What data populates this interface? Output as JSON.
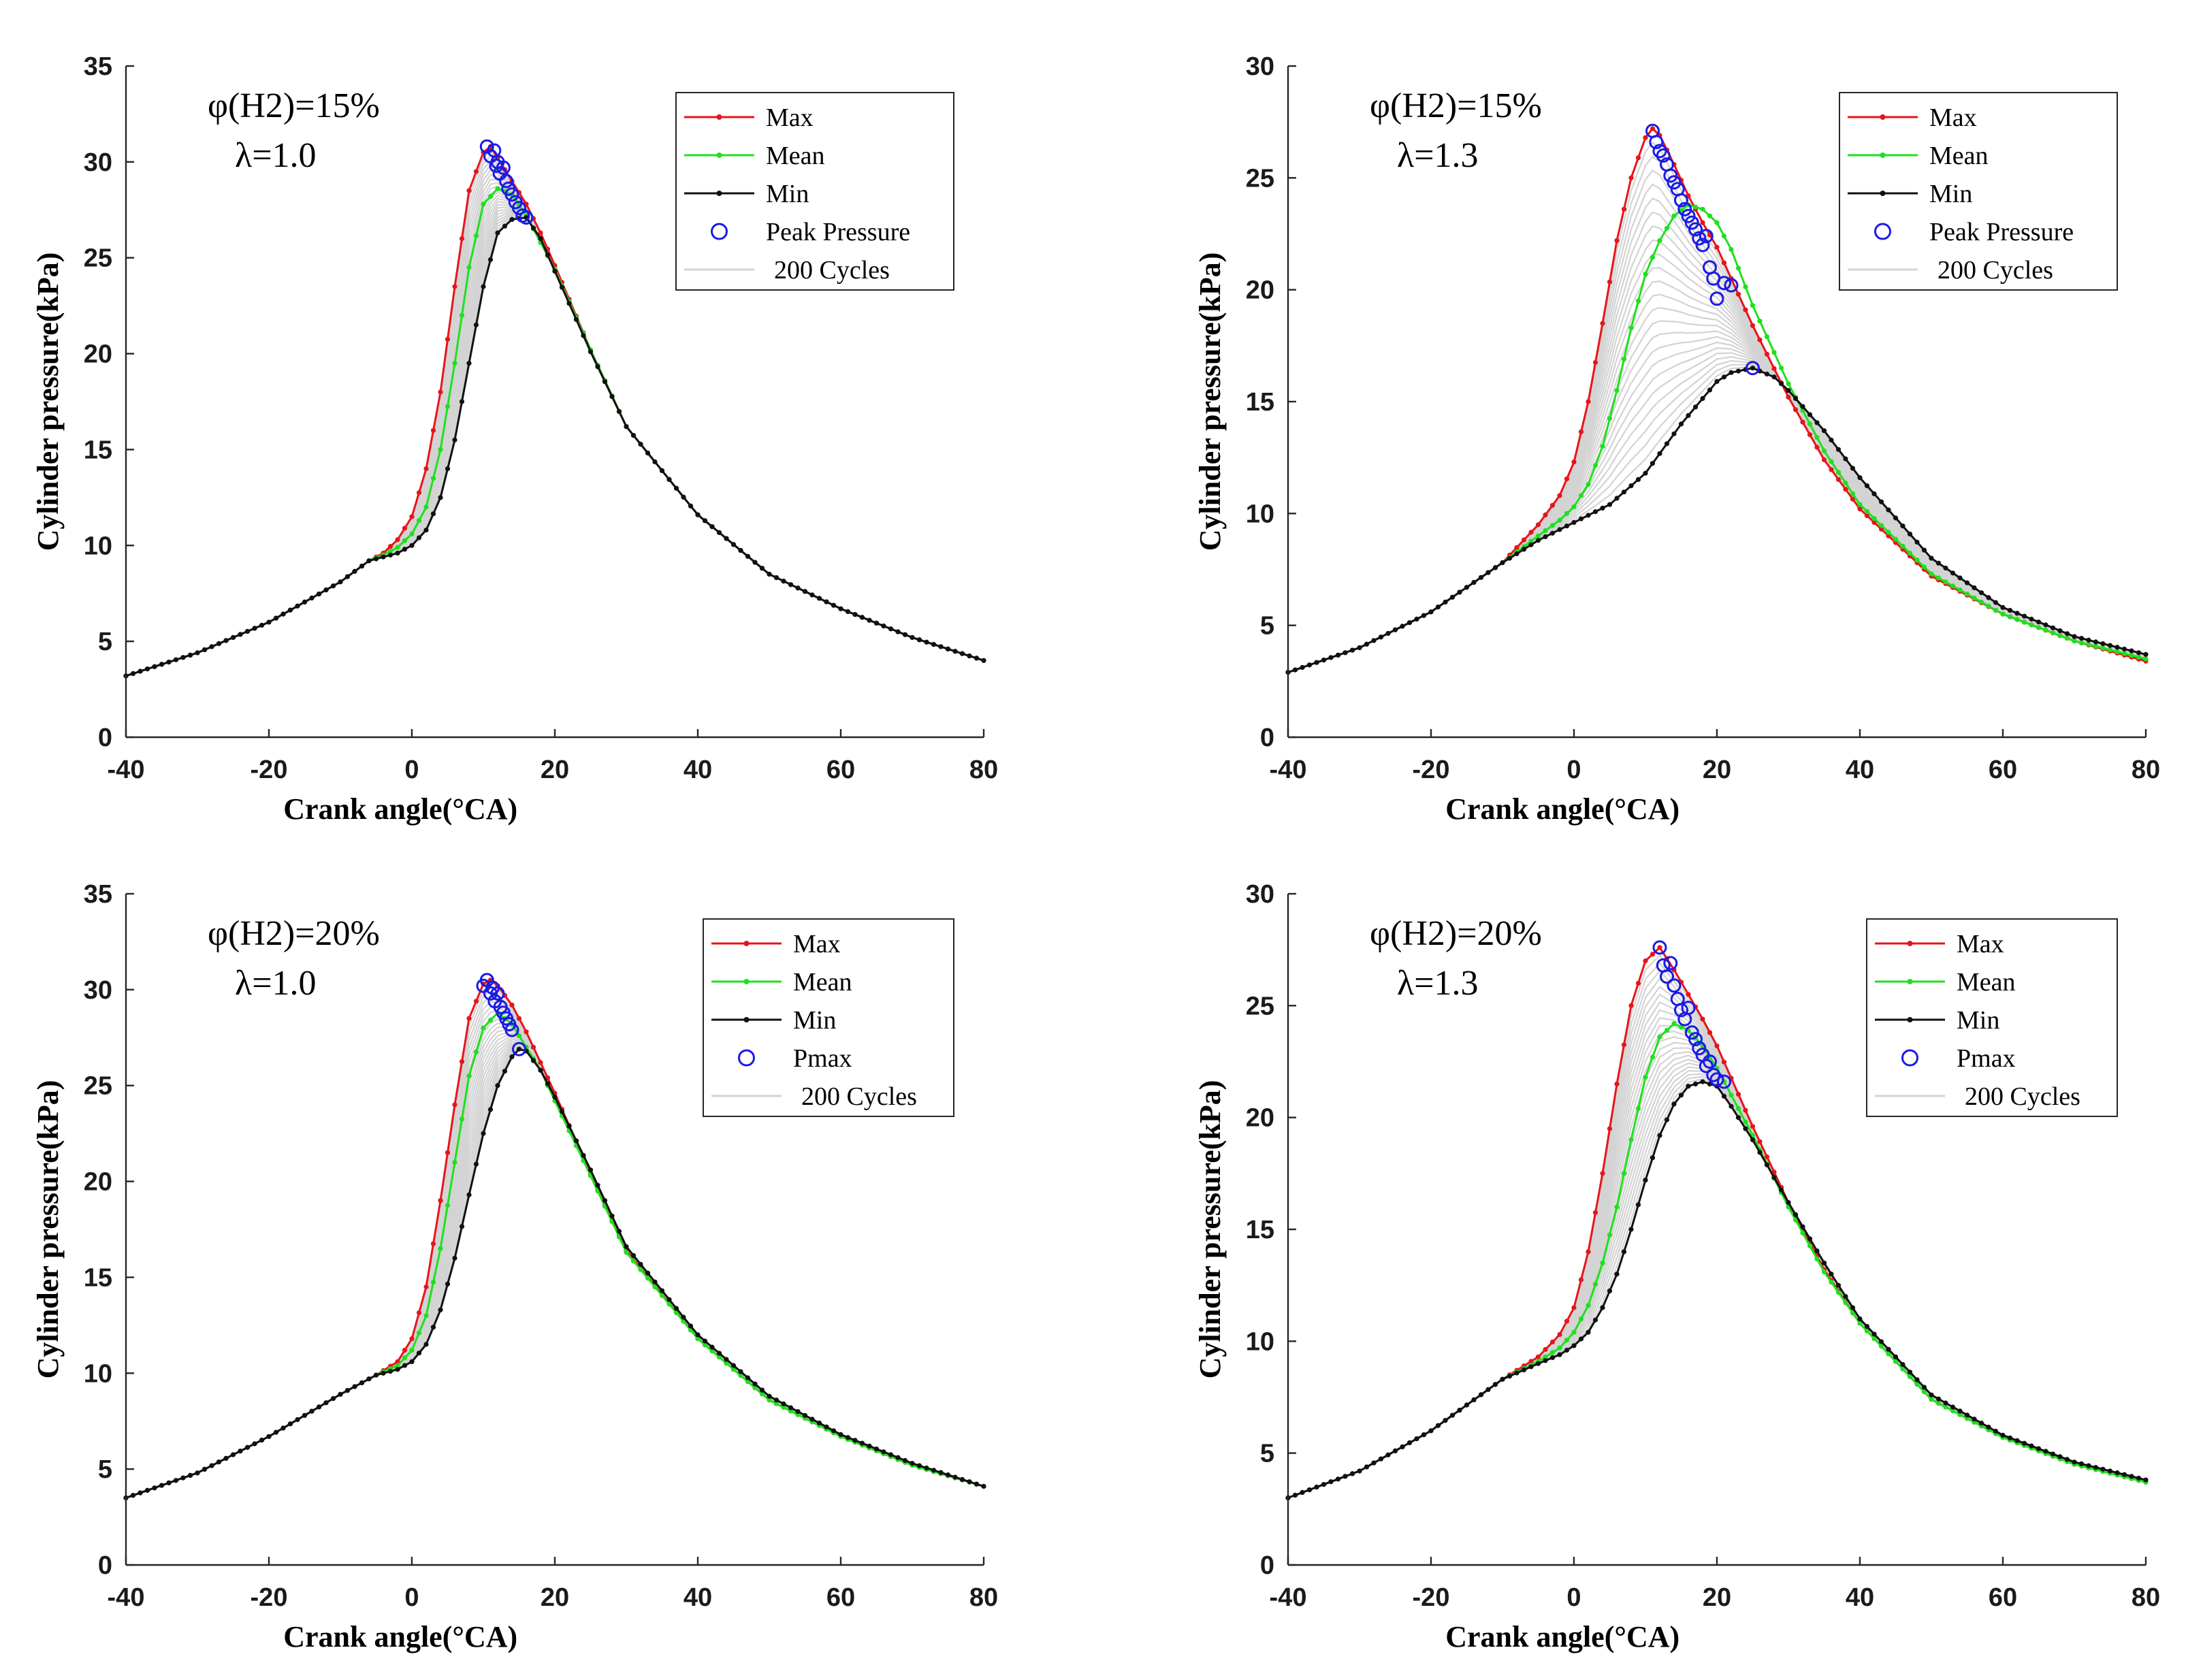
{
  "figure": {
    "xlabel": "Crank angle(°CA)",
    "ylabel": "Cylinder pressure(kPa)"
  },
  "colors": {
    "max": "#e8141a",
    "mean": "#1fe01f",
    "min": "#111111",
    "peak": "#1a1ae6",
    "cycles": "#d3d3d3"
  },
  "chart_data": [
    {
      "type": "line",
      "annotation": [
        "φ(H2)=15%",
        "λ=1.0"
      ],
      "xlabel": "Crank angle(°CA)",
      "ylabel": "Cylinder pressure(kPa)",
      "xlim": [
        -40,
        80
      ],
      "ylim": [
        0,
        35
      ],
      "xticks": [
        -40,
        -20,
        0,
        20,
        40,
        60,
        80
      ],
      "yticks": [
        0,
        5,
        10,
        15,
        20,
        25,
        30,
        35
      ],
      "legend": [
        "Max",
        "Mean",
        "Min",
        "Peak Pressure",
        "200 Cycles"
      ],
      "series": [
        {
          "name": "Max",
          "x": [
            -40,
            -30,
            -20,
            -10,
            -6,
            -4,
            -2,
            0,
            2,
            4,
            6,
            8,
            10,
            11,
            12,
            14,
            16,
            18,
            20,
            25,
            30,
            40,
            50,
            60,
            70,
            80
          ],
          "y": [
            3.2,
            4.4,
            6,
            8.1,
            9.2,
            9.6,
            10.3,
            11.5,
            14,
            18,
            23.5,
            28.5,
            30.5,
            30.8,
            30.2,
            29,
            27.8,
            26.3,
            24.6,
            20.2,
            16.2,
            11.6,
            8.5,
            6.7,
            5.2,
            4.0
          ]
        },
        {
          "name": "Mean",
          "x": [
            -40,
            -30,
            -20,
            -10,
            -6,
            -4,
            -2,
            0,
            2,
            4,
            6,
            8,
            10,
            12,
            14,
            16,
            18,
            20,
            25,
            30,
            40,
            50,
            60,
            70,
            80
          ],
          "y": [
            3.2,
            4.4,
            6,
            8.1,
            9.2,
            9.5,
            9.9,
            10.6,
            12,
            15,
            19.5,
            24.5,
            27.8,
            28.6,
            28.3,
            27.2,
            25.8,
            24.4,
            20.2,
            16.2,
            11.6,
            8.5,
            6.7,
            5.2,
            4.0
          ]
        },
        {
          "name": "Min",
          "x": [
            -40,
            -30,
            -20,
            -10,
            -6,
            -4,
            -2,
            0,
            2,
            4,
            6,
            8,
            10,
            12,
            14,
            16,
            18,
            20,
            25,
            30,
            40,
            50,
            60,
            70,
            80
          ],
          "y": [
            3.2,
            4.4,
            6,
            8.1,
            9.2,
            9.4,
            9.6,
            10,
            10.8,
            12.5,
            15.5,
            19.5,
            23.5,
            26.3,
            27,
            27.1,
            26,
            24.3,
            20.1,
            16.2,
            11.6,
            8.5,
            6.7,
            5.2,
            4.0
          ]
        }
      ],
      "peak_points": {
        "x": [
          10.5,
          11,
          11.5,
          11.8,
          12,
          12.3,
          12.8,
          13.2,
          13.5,
          14,
          14.5,
          15,
          15.5,
          16
        ],
        "y": [
          30.8,
          30.3,
          30.6,
          29.8,
          30,
          29.4,
          29.7,
          29,
          28.6,
          28.3,
          27.9,
          27.6,
          27.2,
          27.1
        ]
      }
    },
    {
      "type": "line",
      "annotation": [
        "φ(H2)=15%",
        "λ=1.3"
      ],
      "xlabel": "Crank angle(°CA)",
      "ylabel": "Cylinder pressure(kPa)",
      "xlim": [
        -40,
        80
      ],
      "ylim": [
        0,
        30
      ],
      "xticks": [
        -40,
        -20,
        0,
        20,
        40,
        60,
        80
      ],
      "yticks": [
        0,
        5,
        10,
        15,
        20,
        25,
        30
      ],
      "legend": [
        "Max",
        "Mean",
        "Min",
        "Peak Pressure",
        "200 Cycles"
      ],
      "series": [
        {
          "name": "Max",
          "x": [
            -40,
            -30,
            -20,
            -10,
            -5,
            -2,
            0,
            2,
            4,
            6,
            8,
            10,
            11,
            12,
            14,
            16,
            18,
            20,
            25,
            30,
            35,
            40,
            50,
            60,
            70,
            80
          ],
          "y": [
            2.9,
            4,
            5.6,
            7.8,
            9.5,
            10.8,
            12.3,
            15,
            18.5,
            22.2,
            25,
            26.8,
            27.2,
            26.9,
            25.6,
            24.2,
            23,
            21.9,
            18.4,
            15.2,
            12.4,
            10.2,
            7.2,
            5.5,
            4.3,
            3.4
          ]
        },
        {
          "name": "Mean",
          "x": [
            -40,
            -30,
            -20,
            -10,
            -5,
            -2,
            0,
            2,
            4,
            6,
            8,
            10,
            12,
            14,
            16,
            18,
            20,
            22,
            25,
            30,
            35,
            40,
            50,
            60,
            70,
            80
          ],
          "y": [
            2.9,
            4,
            5.6,
            7.8,
            9,
            9.7,
            10.3,
            11.3,
            13,
            15.5,
            18.3,
            20.7,
            22.2,
            23.3,
            23.8,
            23.6,
            23,
            21.8,
            19.3,
            15.8,
            12.8,
            10.4,
            7.3,
            5.5,
            4.3,
            3.5
          ]
        },
        {
          "name": "Min",
          "x": [
            -40,
            -30,
            -20,
            -10,
            -5,
            0,
            5,
            10,
            15,
            20,
            22,
            25,
            28,
            30,
            35,
            40,
            50,
            60,
            70,
            80
          ],
          "y": [
            2.9,
            4,
            5.6,
            7.8,
            8.8,
            9.6,
            10.4,
            11.8,
            14,
            15.9,
            16.3,
            16.5,
            16.1,
            15.5,
            13.7,
            11.6,
            8,
            5.8,
            4.5,
            3.7
          ]
        }
      ],
      "peak_points": {
        "x": [
          11,
          11.5,
          12,
          12.5,
          13,
          13.5,
          14,
          14.5,
          15,
          15.5,
          16,
          16.5,
          17,
          17.5,
          18,
          18.5,
          19,
          19.5,
          20,
          21,
          22,
          25
        ],
        "y": [
          27.1,
          26.6,
          26.2,
          26,
          25.6,
          25.1,
          24.8,
          24.5,
          24,
          23.6,
          23.3,
          23,
          22.7,
          22.3,
          22,
          22.4,
          21,
          20.5,
          19.6,
          20.3,
          20.2,
          16.5
        ]
      }
    },
    {
      "type": "line",
      "annotation": [
        "φ(H2)=20%",
        "λ=1.0"
      ],
      "xlabel": "Crank angle(°CA)",
      "ylabel": "Cylinder pressure(kPa)",
      "xlim": [
        -40,
        80
      ],
      "ylim": [
        0,
        35
      ],
      "xticks": [
        -40,
        -20,
        0,
        20,
        40,
        60,
        80
      ],
      "yticks": [
        0,
        5,
        10,
        15,
        20,
        25,
        30,
        35
      ],
      "legend": [
        "Max",
        "Mean",
        "Min",
        "Pmax",
        "200 Cycles"
      ],
      "series": [
        {
          "name": "Max",
          "x": [
            -40,
            -30,
            -20,
            -10,
            -5,
            -2,
            0,
            2,
            4,
            6,
            8,
            10,
            11,
            12,
            14,
            16,
            18,
            20,
            25,
            30,
            40,
            50,
            60,
            70,
            80
          ],
          "y": [
            3.5,
            4.8,
            6.7,
            8.9,
            9.9,
            10.6,
            11.8,
            14.5,
            19,
            24,
            28.5,
            30.3,
            30.5,
            30.2,
            29.2,
            27.8,
            26.2,
            24.6,
            20.4,
            16.4,
            11.8,
            8.6,
            6.7,
            5.2,
            4.1
          ]
        },
        {
          "name": "Mean",
          "x": [
            -40,
            -30,
            -20,
            -10,
            -5,
            -2,
            0,
            2,
            4,
            6,
            8,
            10,
            12,
            14,
            16,
            18,
            20,
            25,
            30,
            40,
            50,
            60,
            70,
            80
          ],
          "y": [
            3.5,
            4.8,
            6.7,
            8.9,
            9.9,
            10.4,
            11.2,
            13,
            16.5,
            21,
            25.5,
            28,
            28.8,
            28.2,
            27,
            25.8,
            24.2,
            20.3,
            16.3,
            11.8,
            8.6,
            6.7,
            5.2,
            4.1
          ]
        },
        {
          "name": "Min",
          "x": [
            -40,
            -30,
            -20,
            -10,
            -5,
            -2,
            0,
            2,
            4,
            6,
            8,
            10,
            12,
            14,
            15,
            16,
            18,
            20,
            25,
            30,
            40,
            50,
            60,
            70,
            80
          ],
          "y": [
            3.5,
            4.8,
            6.7,
            8.9,
            9.9,
            10.2,
            10.6,
            11.5,
            13.3,
            16,
            19.3,
            22.5,
            25,
            26.5,
            26.9,
            26.8,
            25.8,
            24.4,
            20.6,
            16.6,
            12,
            8.8,
            6.8,
            5.3,
            4.1
          ]
        }
      ],
      "peak_points": {
        "x": [
          10,
          10.5,
          11,
          11.3,
          11.6,
          12,
          12.4,
          12.8,
          13.2,
          13.6,
          14,
          15
        ],
        "y": [
          30.2,
          30.5,
          29.8,
          30.1,
          29.4,
          29.8,
          29.1,
          28.8,
          28.5,
          28.2,
          27.9,
          26.9
        ]
      }
    },
    {
      "type": "line",
      "annotation": [
        "φ(H2)=20%",
        "λ=1.3"
      ],
      "xlabel": "Crank angle(°CA)",
      "ylabel": "Cylinder pressure(kPa)",
      "xlim": [
        -40,
        80
      ],
      "ylim": [
        0,
        30
      ],
      "xticks": [
        -40,
        -20,
        0,
        20,
        40,
        60,
        80
      ],
      "yticks": [
        0,
        5,
        10,
        15,
        20,
        25,
        30
      ],
      "legend": [
        "Max",
        "Mean",
        "Min",
        "Pmax",
        "200 Cycles"
      ],
      "series": [
        {
          "name": "Max",
          "x": [
            -40,
            -30,
            -20,
            -10,
            -5,
            -2,
            0,
            2,
            4,
            6,
            8,
            10,
            12,
            14,
            16,
            18,
            20,
            25,
            30,
            35,
            40,
            50,
            60,
            70,
            80
          ],
          "y": [
            3,
            4.2,
            6,
            8.3,
            9.3,
            10.3,
            11.5,
            14,
            17.5,
            21.5,
            25,
            27,
            27.6,
            26.6,
            25.5,
            24.4,
            23.2,
            19.6,
            16.2,
            13.2,
            10.8,
            7.4,
            5.7,
            4.5,
            3.7
          ]
        },
        {
          "name": "Mean",
          "x": [
            -40,
            -30,
            -20,
            -10,
            -5,
            -2,
            0,
            2,
            4,
            6,
            8,
            10,
            12,
            14,
            16,
            18,
            20,
            25,
            30,
            35,
            40,
            50,
            60,
            70,
            80
          ],
          "y": [
            3,
            4.2,
            6,
            8.3,
            9.1,
            9.7,
            10.4,
            11.6,
            13.5,
            16,
            19,
            21.8,
            23.6,
            24.2,
            23.9,
            23.2,
            22.2,
            19.2,
            16,
            13.1,
            10.8,
            7.4,
            5.7,
            4.5,
            3.7
          ]
        },
        {
          "name": "Min",
          "x": [
            -40,
            -30,
            -20,
            -10,
            -5,
            -2,
            0,
            2,
            4,
            6,
            8,
            10,
            12,
            14,
            16,
            18,
            20,
            22,
            25,
            30,
            35,
            40,
            50,
            60,
            70,
            80
          ],
          "y": [
            3,
            4.2,
            6,
            8.3,
            9,
            9.4,
            9.8,
            10.4,
            11.5,
            13,
            15,
            17.2,
            19.2,
            20.6,
            21.4,
            21.6,
            21.4,
            20.5,
            19,
            16.2,
            13.5,
            11,
            7.6,
            5.8,
            4.6,
            3.8
          ]
        }
      ],
      "peak_points": {
        "x": [
          12,
          12.5,
          13,
          13.5,
          14,
          14.5,
          15,
          15.5,
          16,
          16.5,
          17,
          17.5,
          18,
          18.5,
          19,
          19.5,
          20,
          21
        ],
        "y": [
          27.6,
          26.8,
          26.3,
          26.9,
          25.9,
          25.3,
          24.8,
          24.4,
          24.9,
          23.8,
          23.5,
          23.1,
          22.8,
          22.3,
          22.5,
          21.9,
          21.7,
          21.6
        ]
      }
    }
  ]
}
